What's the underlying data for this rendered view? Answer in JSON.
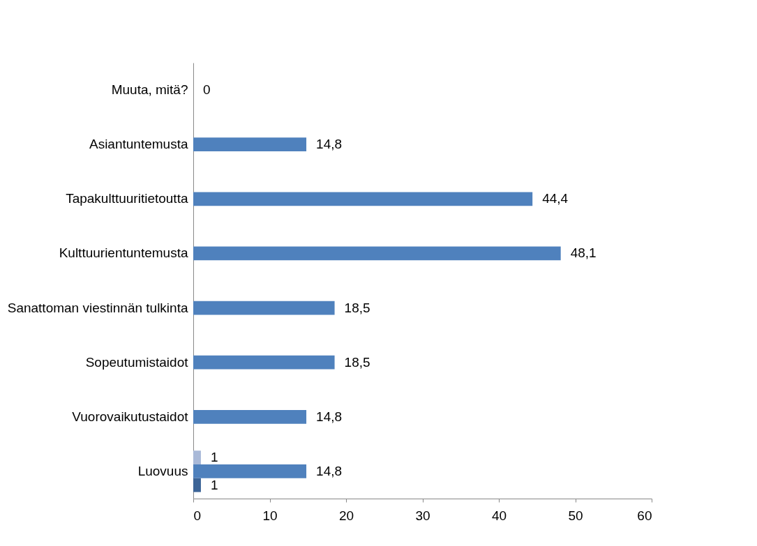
{
  "chart_data": {
    "type": "bar",
    "orientation": "horizontal",
    "categories": [
      "Muuta, mitä?",
      "Asiantuntemusta",
      "Tapakulttuuritietoutta",
      "Kulttuurientuntemusta",
      "Sanattoman viestinnän tulkinta",
      "Sopeutumistaidot",
      "Vuorovaikutustaidot",
      "Luovuus"
    ],
    "series": [
      {
        "color": "#a9b9d8",
        "values": [
          null,
          null,
          null,
          null,
          null,
          null,
          null,
          1
        ],
        "value_labels": [
          null,
          null,
          null,
          null,
          null,
          null,
          null,
          "1"
        ]
      },
      {
        "color": "#4f81bd",
        "values": [
          0,
          14.8,
          44.4,
          48.1,
          18.5,
          18.5,
          14.8,
          14.8
        ],
        "value_labels": [
          "0",
          "14,8",
          "44,4",
          "48,1",
          "18,5",
          "18,5",
          "14,8",
          "14,8"
        ]
      },
      {
        "color": "#3c6497",
        "values": [
          null,
          null,
          null,
          null,
          null,
          null,
          null,
          1
        ],
        "value_labels": [
          null,
          null,
          null,
          null,
          null,
          null,
          null,
          "1"
        ]
      }
    ],
    "xlim": [
      0,
      60
    ],
    "xticks": [
      0,
      10,
      20,
      30,
      40,
      50,
      60
    ],
    "grid": false
  }
}
